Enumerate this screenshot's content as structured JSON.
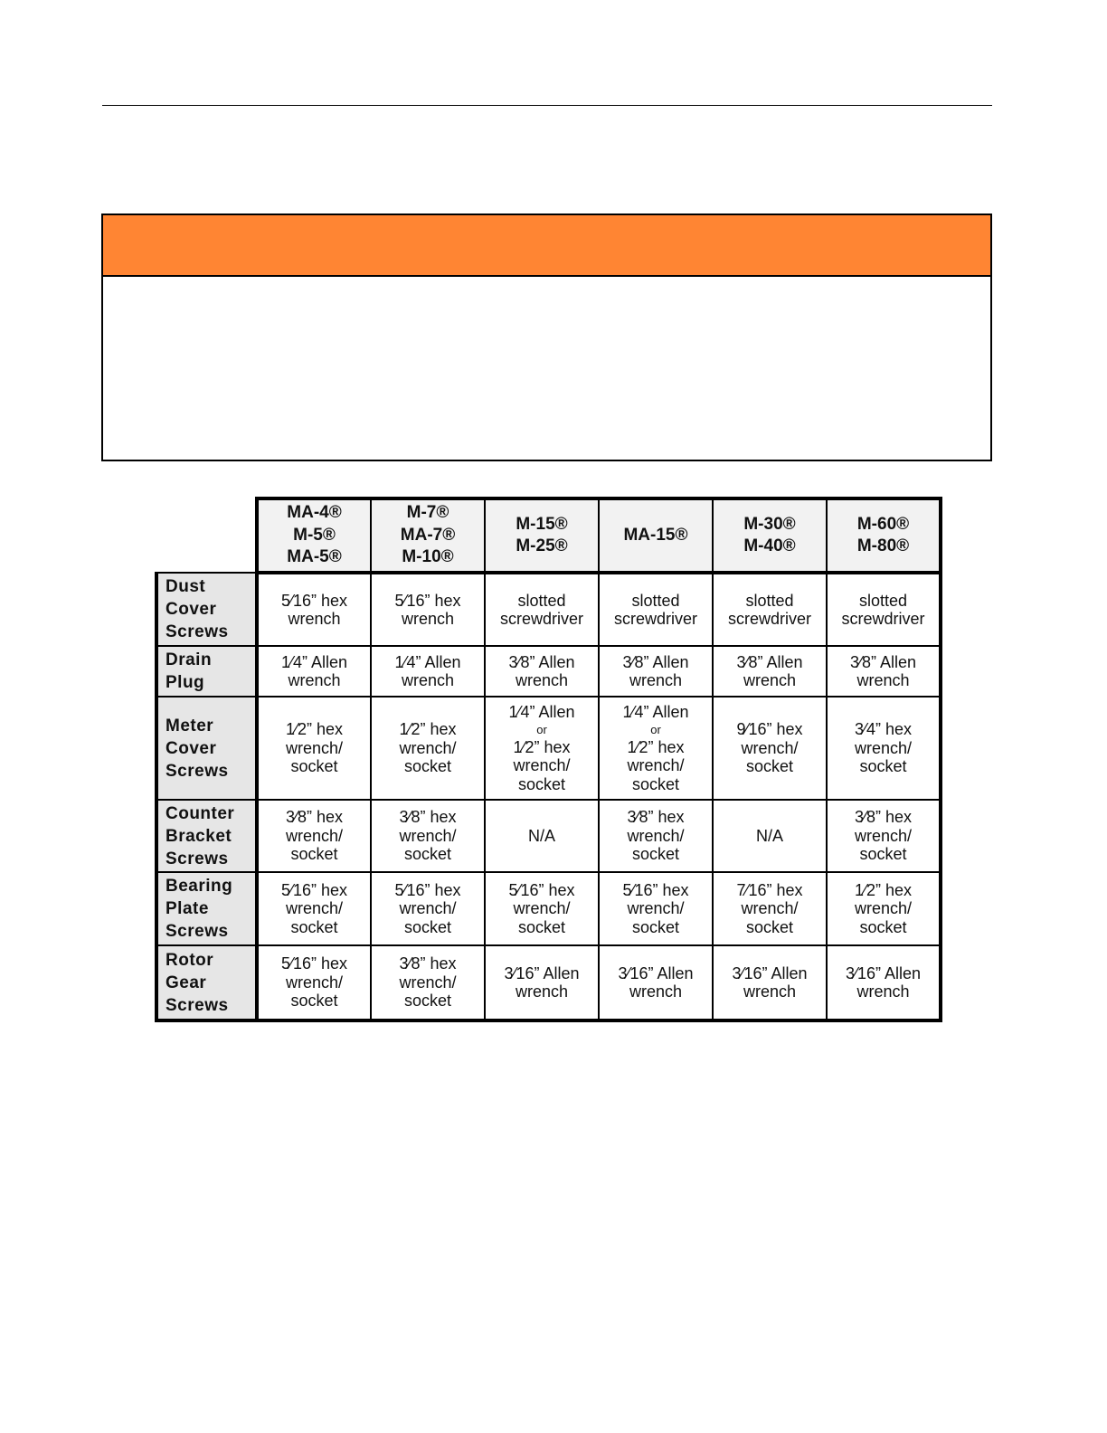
{
  "table": {
    "columns": [
      [
        "MA-4®",
        "M-5®",
        "MA-5®"
      ],
      [
        "M-7®",
        "MA-7®",
        "M-10®"
      ],
      [
        "M-15®",
        "M-25®"
      ],
      [
        "MA-15®"
      ],
      [
        "M-30®",
        "M-40®"
      ],
      [
        "M-60®",
        "M-80®"
      ]
    ],
    "rows": [
      {
        "label": [
          "Dust",
          "Cover",
          "Screws"
        ],
        "cells": [
          [
            "5⁄16” hex",
            "wrench"
          ],
          [
            "5⁄16” hex",
            "wrench"
          ],
          [
            "slotted",
            "screwdriver"
          ],
          [
            "slotted",
            "screwdriver"
          ],
          [
            "slotted",
            "screwdriver"
          ],
          [
            "slotted",
            "screwdriver"
          ]
        ]
      },
      {
        "label": [
          "Drain",
          "Plug"
        ],
        "cells": [
          [
            "1⁄4” Allen",
            "wrench"
          ],
          [
            "1⁄4” Allen",
            "wrench"
          ],
          [
            "3⁄8” Allen",
            "wrench"
          ],
          [
            "3⁄8” Allen",
            "wrench"
          ],
          [
            "3⁄8” Allen",
            "wrench"
          ],
          [
            "3⁄8” Allen",
            "wrench"
          ]
        ]
      },
      {
        "label": [
          "Meter",
          "Cover",
          "Screws"
        ],
        "cells": [
          [
            "1⁄2” hex",
            "wrench/",
            "socket"
          ],
          [
            "1⁄2” hex",
            "wrench/",
            "socket"
          ],
          [
            "1⁄4” Allen",
            "or",
            "1⁄2” hex",
            "wrench/",
            "socket"
          ],
          [
            "1⁄4” Allen",
            "or",
            "1⁄2” hex",
            "wrench/",
            "socket"
          ],
          [
            "9⁄16” hex",
            "wrench/",
            "socket"
          ],
          [
            "3⁄4” hex",
            "wrench/",
            "socket"
          ]
        ]
      },
      {
        "label": [
          "Counter",
          "Bracket",
          "Screws"
        ],
        "cells": [
          [
            "3⁄8” hex",
            "wrench/",
            "socket"
          ],
          [
            "3⁄8” hex",
            "wrench/",
            "socket"
          ],
          [
            "N/A"
          ],
          [
            "3⁄8” hex",
            "wrench/",
            "socket"
          ],
          [
            "N/A"
          ],
          [
            "3⁄8” hex",
            "wrench/",
            "socket"
          ]
        ]
      },
      {
        "label": [
          "Bearing",
          "Plate",
          "Screws"
        ],
        "cells": [
          [
            "5⁄16” hex",
            "wrench/",
            "socket"
          ],
          [
            "5⁄16” hex",
            "wrench/",
            "socket"
          ],
          [
            "5⁄16” hex",
            "wrench/",
            "socket"
          ],
          [
            "5⁄16” hex",
            "wrench/",
            "socket"
          ],
          [
            "7⁄16” hex",
            "wrench/",
            "socket"
          ],
          [
            "1⁄2” hex",
            "wrench/",
            "socket"
          ]
        ]
      },
      {
        "label": [
          "Rotor",
          "Gear",
          "Screws"
        ],
        "cells": [
          [
            "5⁄16” hex",
            "wrench/",
            "socket"
          ],
          [
            "3⁄8” hex",
            "wrench/",
            "socket"
          ],
          [
            "3⁄16” Allen",
            "wrench"
          ],
          [
            "3⁄16” Allen",
            "wrench"
          ],
          [
            "3⁄16” Allen",
            "wrench"
          ],
          [
            "3⁄16” Allen",
            "wrench"
          ]
        ]
      }
    ]
  },
  "colors": {
    "callout_header": "#ff8533",
    "header_bg": "#f2f2f2",
    "label_bg": "#e6e6e6"
  }
}
